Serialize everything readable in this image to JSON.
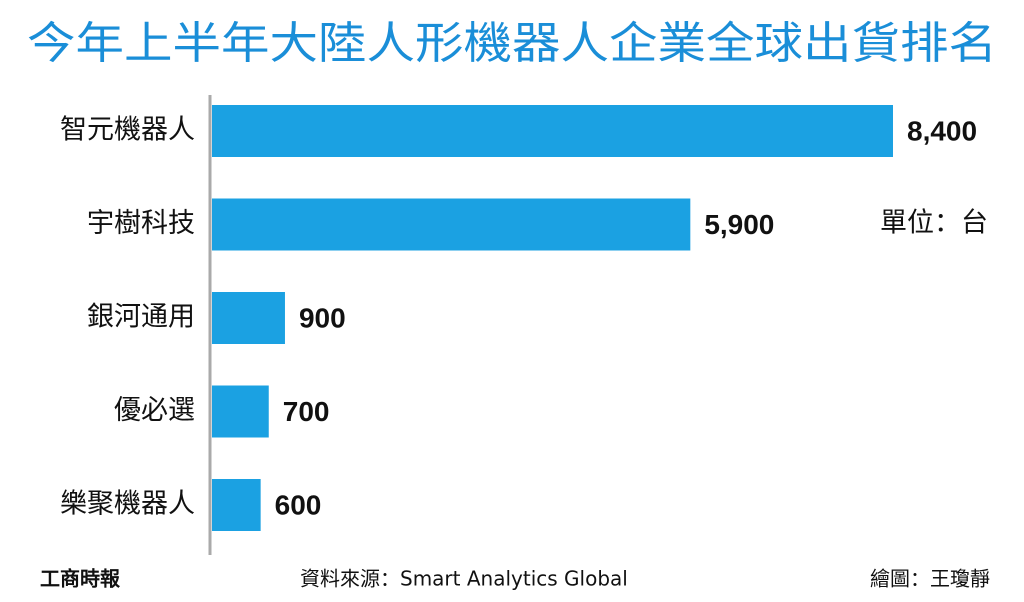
{
  "chart_data": {
    "type": "bar",
    "orientation": "horizontal",
    "title": "今年上半年大陸人形機器人企業全球出貨排名",
    "categories": [
      "智元機器人",
      "宇樹科技",
      "銀河通用",
      "優必選",
      "樂聚機器人"
    ],
    "values": [
      8400,
      5900,
      900,
      700,
      600
    ],
    "value_labels": [
      "8,400",
      "5,900",
      "900",
      "700",
      "600"
    ],
    "color": "#1ba1e2",
    "unit": "單位：台",
    "source": "資料來源：Smart Analytics Global",
    "credit": "繪圖：王瓊靜",
    "publisher": "工商時報"
  }
}
